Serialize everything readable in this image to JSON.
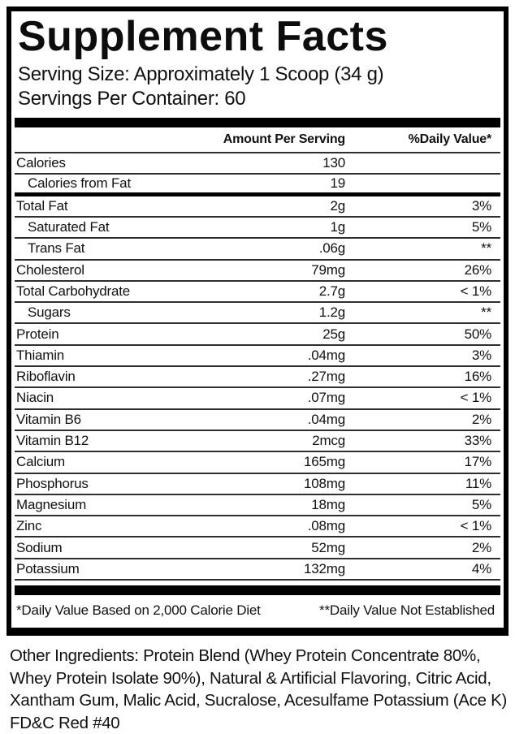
{
  "title": "Supplement Facts",
  "serving_info": {
    "serving_size": "Serving Size: Approximately 1 Scoop (34 g)",
    "servings_per_container": "Servings Per Container: 60"
  },
  "table": {
    "header": {
      "amount": "Amount Per Serving",
      "daily_value": "%Daily Value*"
    },
    "rows": [
      {
        "name": "Calories",
        "amount": "130",
        "dv": ""
      },
      {
        "name": "Calories from Fat",
        "amount": "19",
        "dv": ""
      },
      {
        "name": "Total Fat",
        "amount": "2g",
        "dv": "3%"
      },
      {
        "name": "Saturated Fat",
        "amount": "1g",
        "dv": "5%"
      },
      {
        "name": "Trans Fat",
        "amount": ".06g",
        "dv": "**"
      },
      {
        "name": "Cholesterol",
        "amount": "79mg",
        "dv": "26%"
      },
      {
        "name": "Total Carbohydrate",
        "amount": "2.7g",
        "dv": "< 1%"
      },
      {
        "name": "Sugars",
        "amount": "1.2g",
        "dv": "**"
      },
      {
        "name": "Protein",
        "amount": "25g",
        "dv": "50%"
      },
      {
        "name": "Thiamin",
        "amount": ".04mg",
        "dv": "3%"
      },
      {
        "name": "Riboflavin",
        "amount": ".27mg",
        "dv": "16%"
      },
      {
        "name": "Niacin",
        "amount": ".07mg",
        "dv": "< 1%"
      },
      {
        "name": "Vitamin B6",
        "amount": ".04mg",
        "dv": "2%"
      },
      {
        "name": "Vitamin B12",
        "amount": "2mcg",
        "dv": "33%"
      },
      {
        "name": "Calcium",
        "amount": "165mg",
        "dv": "17%"
      },
      {
        "name": "Phosphorus",
        "amount": "108mg",
        "dv": "11%"
      },
      {
        "name": "Magnesium",
        "amount": "18mg",
        "dv": "5%"
      },
      {
        "name": "Zinc",
        "amount": ".08mg",
        "dv": "< 1%"
      },
      {
        "name": "Sodium",
        "amount": "52mg",
        "dv": "2%"
      },
      {
        "name": "Potassium",
        "amount": "132mg",
        "dv": "4%"
      }
    ]
  },
  "footnotes": {
    "daily_value_basis": "*Daily Value Based on 2,000 Calorie Diet",
    "not_established": "**Daily Value Not Established"
  },
  "other_ingredients": {
    "lines": [
      "Other Ingredients: Protein Blend (Whey Protein Concentrate 80%,",
      "Whey Protein Isolate 90%), Natural & Artificial Flavoring, Citric Acid,",
      "Xantham Gum, Malic Acid, Sucralose, Acesulfame Potassium (Ace K)",
      "FD&C Red #40"
    ],
    "full_text": "Other Ingredients: Protein Blend (Whey Protein Concentrate 80%, Whey Protein Isolate 90%), Natural & Artificial Flavoring, Citric Acid, Xantham Gum, Malic Acid, Sucralose, Acesulfame Potassium (Ace K) FD&C Red #40"
  },
  "colors": {
    "text": "#111111",
    "border": "#000000",
    "thin_line": "#2e2e2e",
    "background": "#ffffff"
  }
}
